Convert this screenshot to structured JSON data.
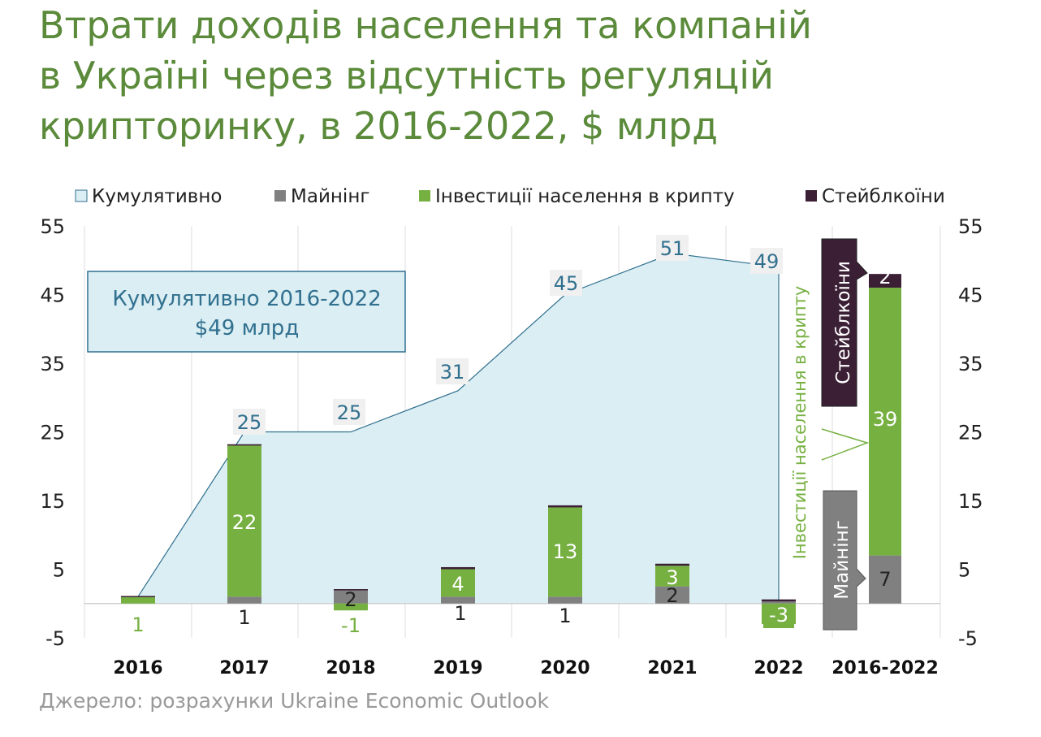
{
  "title_lines": [
    "Втрати доходів населення та компаній",
    "в Україні через відсутність регуляцій",
    "крипторинку, в 2016-2022, $ млрд"
  ],
  "source": "Джерело: розрахунки Ukraine Economic Outlook",
  "chart_data": {
    "type": "bar",
    "categories": [
      "2016",
      "2017",
      "2018",
      "2019",
      "2020",
      "2021",
      "2022",
      "2016-2022"
    ],
    "ylim": [
      -5,
      55
    ],
    "yticks": [
      -5,
      5,
      15,
      25,
      35,
      45,
      55
    ],
    "grid": true,
    "legend_position": "top",
    "series": [
      {
        "name": "Кумулятивно",
        "type": "area",
        "color": "#daeef3",
        "stroke": "#31708f",
        "values": [
          1,
          25,
          25,
          31,
          45,
          51,
          49,
          null
        ],
        "labels": [
          "",
          "25",
          "25",
          "31",
          "45",
          "51",
          "49",
          ""
        ]
      },
      {
        "name": "Майнінг",
        "type": "bar",
        "color": "#808080",
        "values": [
          0,
          1,
          2,
          1,
          1,
          2.5,
          0.3,
          7
        ],
        "labels": [
          "",
          "1",
          "2",
          "1",
          "1",
          "2",
          "",
          "7"
        ]
      },
      {
        "name": "Інвестиції населення в крипту",
        "type": "bar",
        "color": "#76b041",
        "values": [
          1,
          22,
          -1,
          4,
          13,
          3,
          -3,
          39
        ],
        "labels": [
          "1",
          "22",
          "-1",
          "4",
          "13",
          "3",
          "-3",
          "39"
        ]
      },
      {
        "name": "Стейблкоїни",
        "type": "bar",
        "color": "#3b1f35",
        "values": [
          0.1,
          0.2,
          0.1,
          0.3,
          0.3,
          0.3,
          0.3,
          2
        ],
        "labels": [
          "",
          "",
          "",
          "",
          "",
          "",
          "",
          "2"
        ]
      }
    ],
    "annotations": {
      "cumulative_box": [
        "Кумулятивно 2016-2022",
        "$49 млрд"
      ],
      "stablecoins_callout": "Стейблкоїни",
      "investments_callout": "Інвестиції населення в крипту",
      "mining_callout": "Майнінг"
    }
  }
}
